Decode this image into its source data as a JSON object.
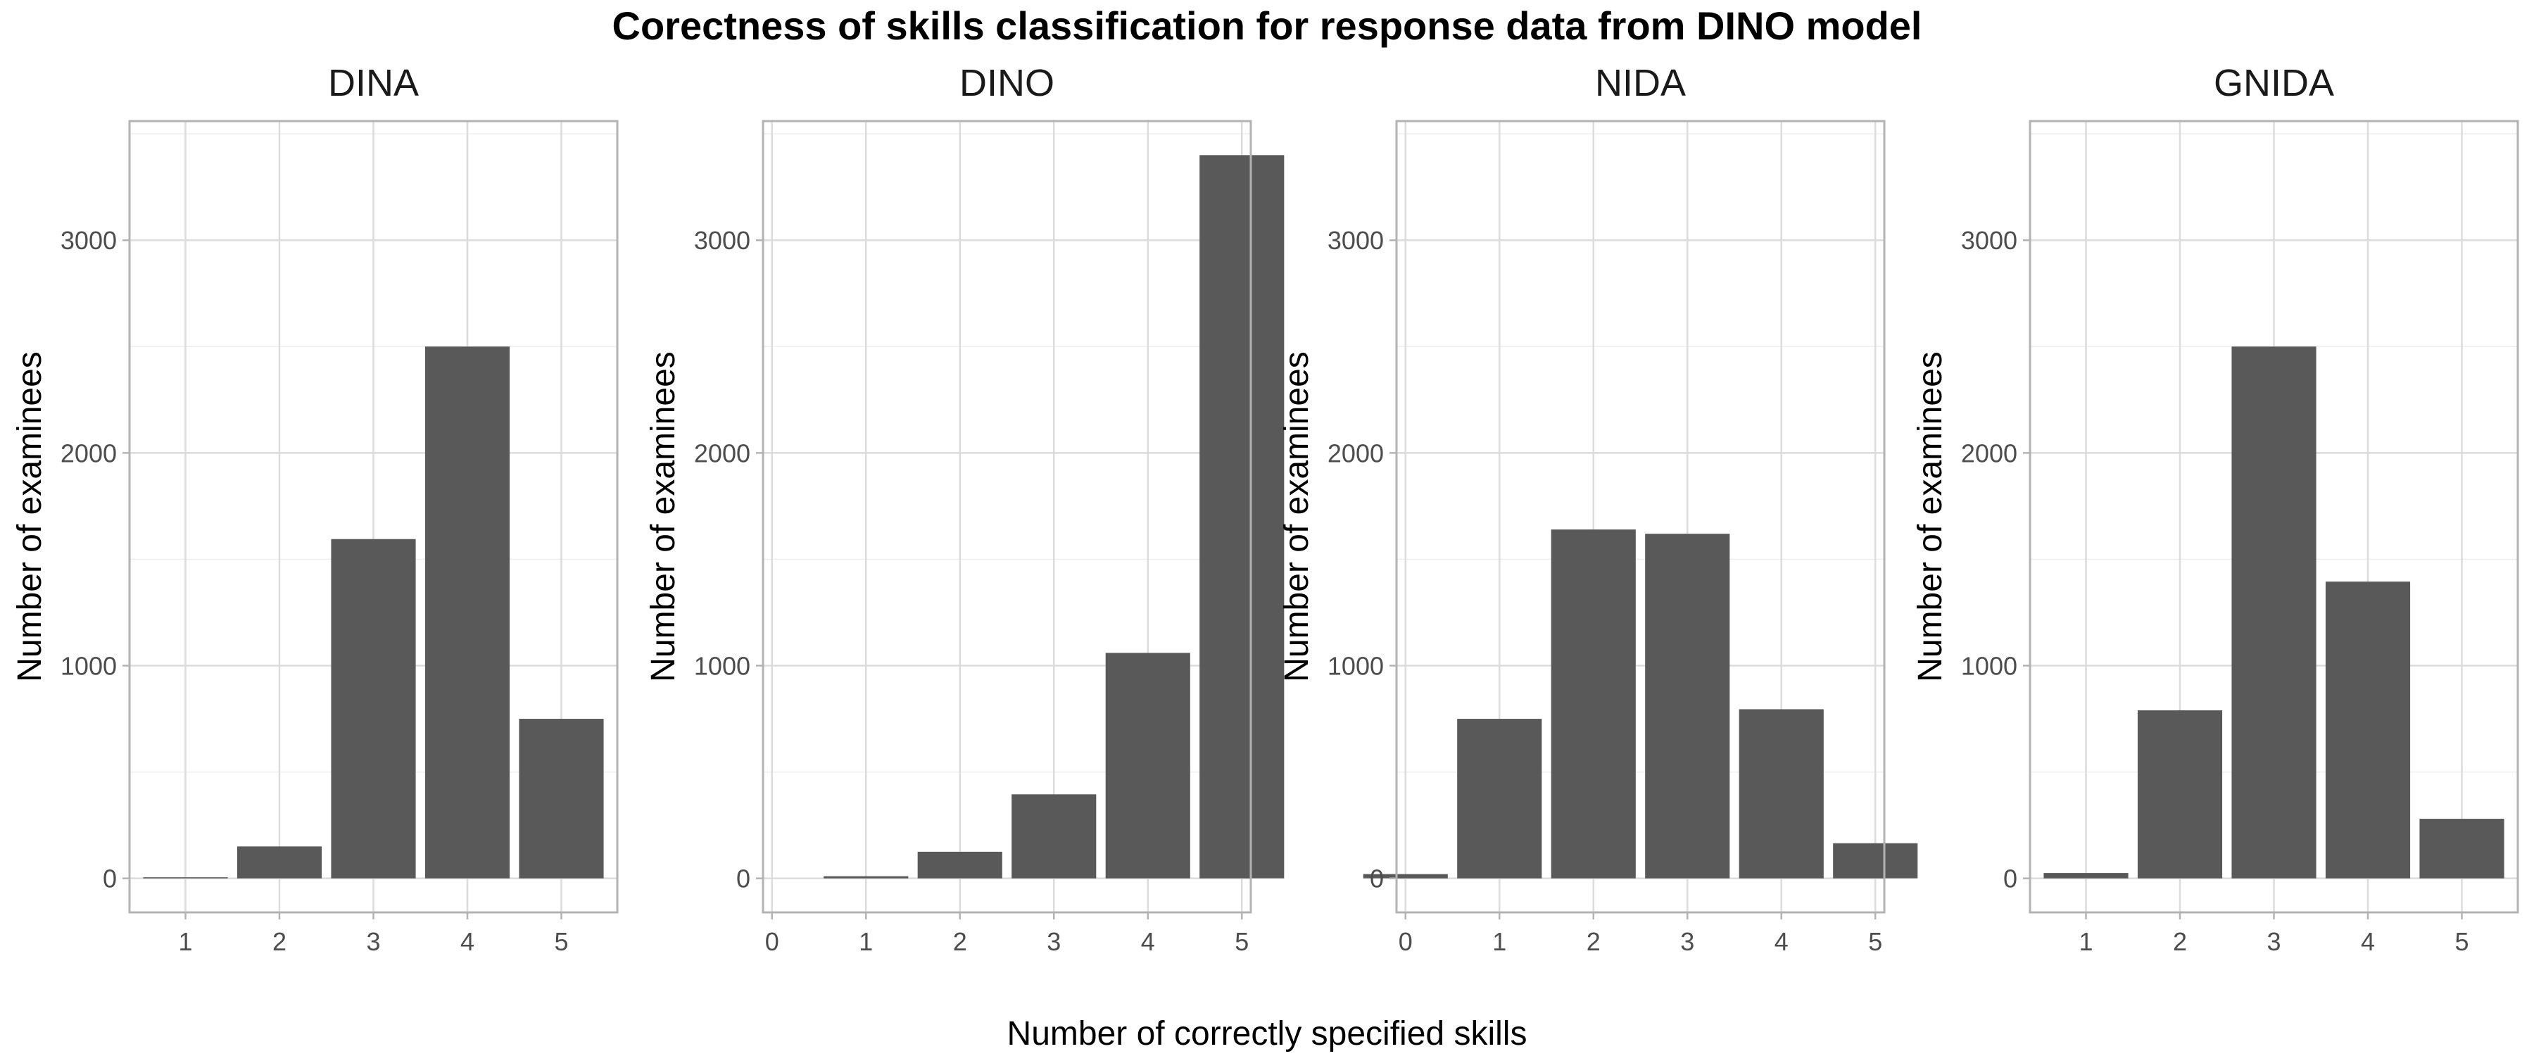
{
  "title": "Corectness of skills classification for response data from DINO model",
  "xlabel": "Number of correctly specified skills",
  "colors": {
    "bar": "#595959",
    "grid_major": "#dcdcdc",
    "grid_minor": "#eeeeee",
    "panel_border": "#b3b3b3",
    "tick_text": "#4d4d4d"
  },
  "chart_data": [
    {
      "type": "bar",
      "title": "DINA",
      "ylabel": "Number of examinees",
      "categories": [
        "1",
        "2",
        "3",
        "4",
        "5"
      ],
      "values": [
        5,
        150,
        1595,
        2500,
        750
      ],
      "ylim": [
        -160,
        3560
      ],
      "yticks": [
        0,
        1000,
        2000,
        3000
      ],
      "grid": true
    },
    {
      "type": "bar",
      "title": "DINO",
      "ylabel": "Number of examinees",
      "categories": [
        "0",
        "1",
        "2",
        "3",
        "4",
        "5"
      ],
      "values": [
        0,
        10,
        125,
        395,
        1060,
        3400
      ],
      "ylim": [
        -160,
        3560
      ],
      "yticks": [
        0,
        1000,
        2000,
        3000
      ],
      "grid": true
    },
    {
      "type": "bar",
      "title": "NIDA",
      "ylabel": "Number of examinees",
      "categories": [
        "0",
        "1",
        "2",
        "3",
        "4",
        "5"
      ],
      "values": [
        20,
        750,
        1640,
        1620,
        795,
        165
      ],
      "ylim": [
        -160,
        3560
      ],
      "yticks": [
        0,
        1000,
        2000,
        3000
      ],
      "grid": true
    },
    {
      "type": "bar",
      "title": "GNIDA",
      "ylabel": "Number of examinees",
      "categories": [
        "1",
        "2",
        "3",
        "4",
        "5"
      ],
      "values": [
        25,
        790,
        2500,
        1395,
        280
      ],
      "ylim": [
        -160,
        3560
      ],
      "yticks": [
        0,
        1000,
        2000,
        3000
      ],
      "grid": true
    }
  ]
}
